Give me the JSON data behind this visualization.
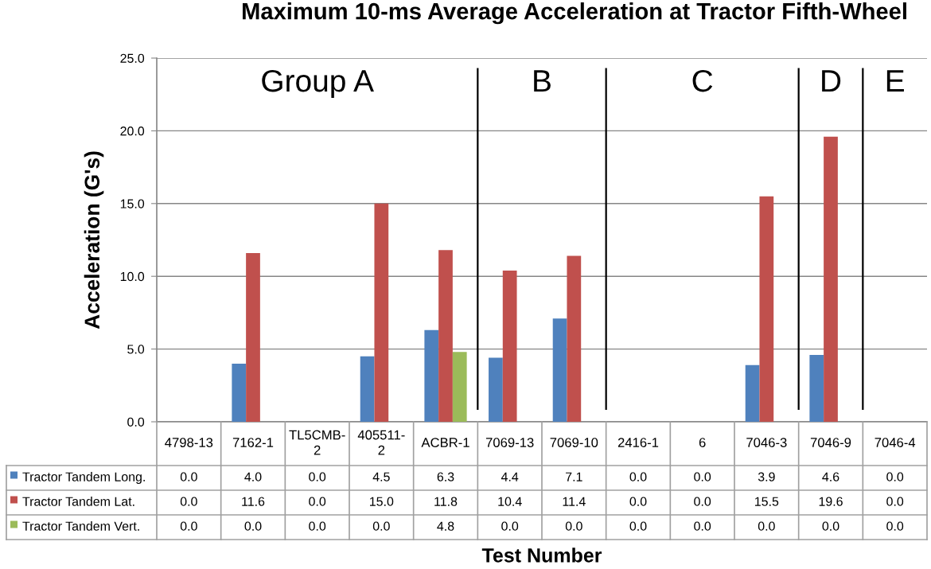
{
  "chart_data": {
    "type": "bar",
    "title": "Maximum 10-ms Average Acceleration at Tractor Fifth-Wheel",
    "xlabel": "Test Number",
    "ylabel": "Acceleration (G's)",
    "categories": [
      "4798-13",
      "7162-1",
      "TL5CMB-2",
      "405511-2",
      "ACBR-1",
      "7069-13",
      "7069-10",
      "2416-1",
      "6",
      "7046-3",
      "7046-9",
      "7046-4"
    ],
    "series": [
      {
        "name": "Tractor Tandem Long.",
        "color": "#4f81bd",
        "values": [
          0.0,
          4.0,
          0.0,
          4.5,
          6.3,
          4.4,
          7.1,
          0.0,
          0.0,
          3.9,
          4.6,
          0.0
        ],
        "value_labels": [
          "0.0",
          "4.0",
          "0.0",
          "4.5",
          "6.3",
          "4.4",
          "7.1",
          "0.0",
          "0.0",
          "3.9",
          "4.6",
          "0.0"
        ]
      },
      {
        "name": "Tractor Tandem Lat.",
        "color": "#c0504d",
        "values": [
          0.0,
          11.6,
          0.0,
          15.0,
          11.8,
          10.4,
          11.4,
          0.0,
          0.0,
          15.5,
          19.6,
          0.0
        ],
        "value_labels": [
          "0.0",
          "11.6",
          "0.0",
          "15.0",
          "11.8",
          "10.4",
          "11.4",
          "0.0",
          "0.0",
          "15.5",
          "19.6",
          "0.0"
        ]
      },
      {
        "name": "Tractor Tandem Vert.",
        "color": "#9bbb59",
        "values": [
          0.0,
          0.0,
          0.0,
          0.0,
          4.8,
          0.0,
          0.0,
          0.0,
          0.0,
          0.0,
          0.0,
          0.0
        ],
        "value_labels": [
          "0.0",
          "0.0",
          "0.0",
          "0.0",
          "4.8",
          "0.0",
          "0.0",
          "0.0",
          "0.0",
          "0.0",
          "0.0",
          "0.0"
        ]
      }
    ],
    "ylim": [
      0,
      25
    ],
    "yticks": [
      {
        "value": 0,
        "label": "0.0"
      },
      {
        "value": 5,
        "label": "5.0"
      },
      {
        "value": 10,
        "label": "10.0"
      },
      {
        "value": 15,
        "label": "15.0"
      },
      {
        "value": 20,
        "label": "20.0"
      },
      {
        "value": 25,
        "label": "25.0"
      }
    ],
    "grid": "y",
    "legend": "bottom left",
    "annotations": [
      "Group A",
      "B",
      "C",
      "D",
      "E"
    ]
  }
}
